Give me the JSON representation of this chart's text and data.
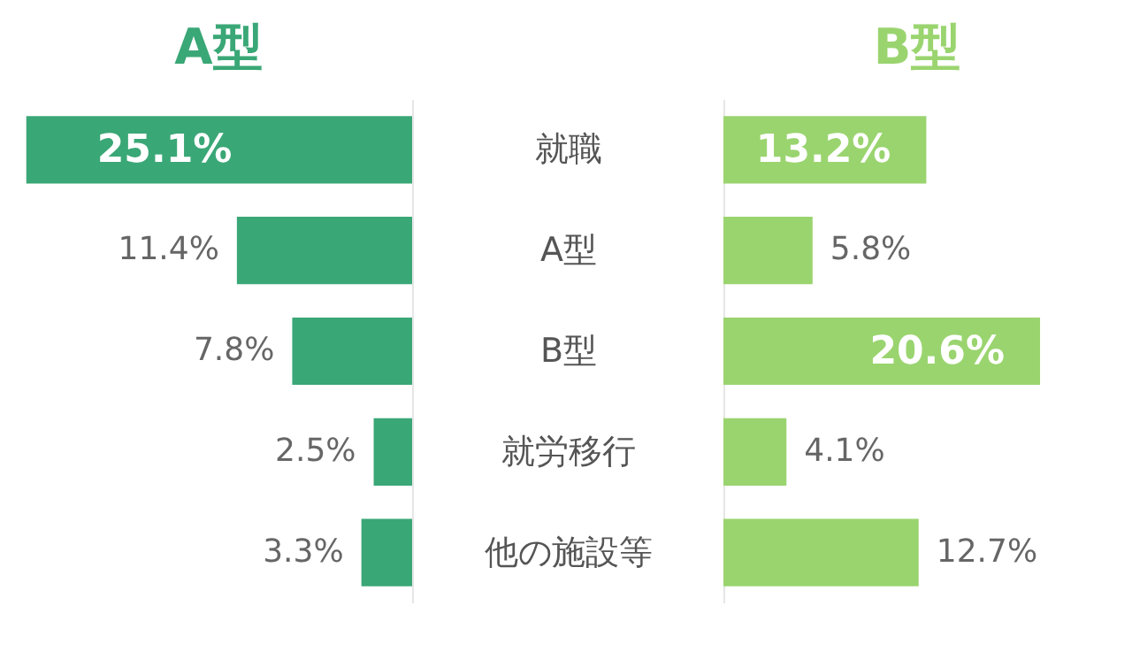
{
  "chart_data": [
    {
      "type": "bar",
      "orientation": "horizontal",
      "title": "A型",
      "categories": [
        "就職",
        "A型",
        "B型",
        "就労移行",
        "他の施設等"
      ],
      "xlim": [
        25.2,
        0
      ],
      "tick_labels": "y",
      "series": [
        {
          "color": "#3aa776",
          "values": [
            25.1,
            11.4,
            7.8,
            2.5,
            3.3
          ],
          "value_labels": [
            "25.1%",
            "11.4%",
            "7.8%",
            "2.5%",
            "3.3%"
          ]
        }
      ]
    },
    {
      "type": "bar",
      "orientation": "horizontal",
      "title": "B型",
      "categories": [
        null,
        null,
        null,
        null,
        null
      ],
      "xlim": [
        0,
        25.2
      ],
      "tick_labels": false,
      "series": [
        {
          "color": "#9ad46f",
          "values": [
            13.2,
            5.8,
            20.6,
            4.1,
            12.7
          ],
          "value_labels": [
            "13.2%",
            "5.8%",
            "20.6%",
            "4.1%",
            "12.7%"
          ]
        }
      ]
    }
  ]
}
